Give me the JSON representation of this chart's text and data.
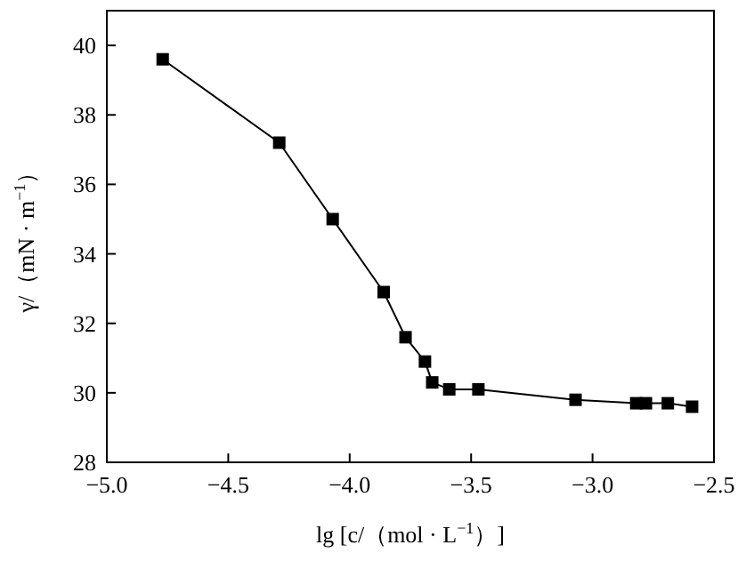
{
  "chart_data": {
    "type": "line",
    "xlabel": "lg [c/（mol · L$^{−1}$）]",
    "ylabel": "γ/（mN · m$^{−1}$）",
    "x": [
      -4.77,
      -4.29,
      -4.07,
      -3.86,
      -3.77,
      -3.69,
      -3.66,
      -3.59,
      -3.47,
      -3.07,
      -2.82,
      -2.78,
      -2.69,
      -2.59
    ],
    "series": [
      {
        "color": "#000000",
        "values": [
          39.6,
          37.2,
          35.0,
          32.9,
          31.6,
          30.9,
          30.3,
          30.1,
          30.1,
          29.8,
          29.7,
          29.7,
          29.7,
          29.6
        ]
      }
    ],
    "xlim": [
      -5.0,
      -2.5
    ],
    "xticks": [
      {
        "value": -5.0,
        "label": "−5.0"
      },
      {
        "value": -4.5,
        "label": "−4.5"
      },
      {
        "value": -4.0,
        "label": "−4.0"
      },
      {
        "value": -3.5,
        "label": "−3.5"
      },
      {
        "value": -3.0,
        "label": "−3.0"
      },
      {
        "value": -2.5,
        "label": "−2.5"
      }
    ],
    "ylim": [
      28,
      41
    ],
    "yticks": [
      28,
      30,
      32,
      34,
      36,
      38,
      40
    ],
    "marker": "square",
    "line_style": "solid"
  }
}
